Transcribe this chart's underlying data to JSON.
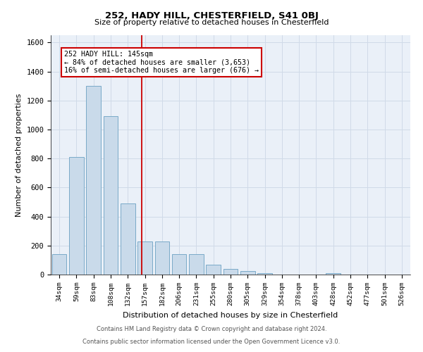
{
  "title1": "252, HADY HILL, CHESTERFIELD, S41 0BJ",
  "title2": "Size of property relative to detached houses in Chesterfield",
  "xlabel": "Distribution of detached houses by size in Chesterfield",
  "ylabel": "Number of detached properties",
  "footnote1": "Contains HM Land Registry data © Crown copyright and database right 2024.",
  "footnote2": "Contains public sector information licensed under the Open Government Licence v3.0.",
  "bins": [
    "34sqm",
    "59sqm",
    "83sqm",
    "108sqm",
    "132sqm",
    "157sqm",
    "182sqm",
    "206sqm",
    "231sqm",
    "255sqm",
    "280sqm",
    "305sqm",
    "329sqm",
    "354sqm",
    "378sqm",
    "403sqm",
    "428sqm",
    "452sqm",
    "477sqm",
    "501sqm",
    "526sqm"
  ],
  "values": [
    140,
    810,
    1300,
    1090,
    490,
    230,
    230,
    140,
    140,
    70,
    40,
    25,
    10,
    0,
    0,
    0,
    10,
    0,
    0,
    0,
    0
  ],
  "bar_color": "#c9daea",
  "bar_edge_color": "#7aaac8",
  "grid_color": "#d0dae8",
  "background_color": "#eaf0f8",
  "vline_x_index": 4.82,
  "vline_color": "#cc0000",
  "annotation_text1": "252 HADY HILL: 145sqm",
  "annotation_text2": "← 84% of detached houses are smaller (3,653)",
  "annotation_text3": "16% of semi-detached houses are larger (676) →",
  "ylim": [
    0,
    1650
  ],
  "yticks": [
    0,
    200,
    400,
    600,
    800,
    1000,
    1200,
    1400,
    1600
  ]
}
